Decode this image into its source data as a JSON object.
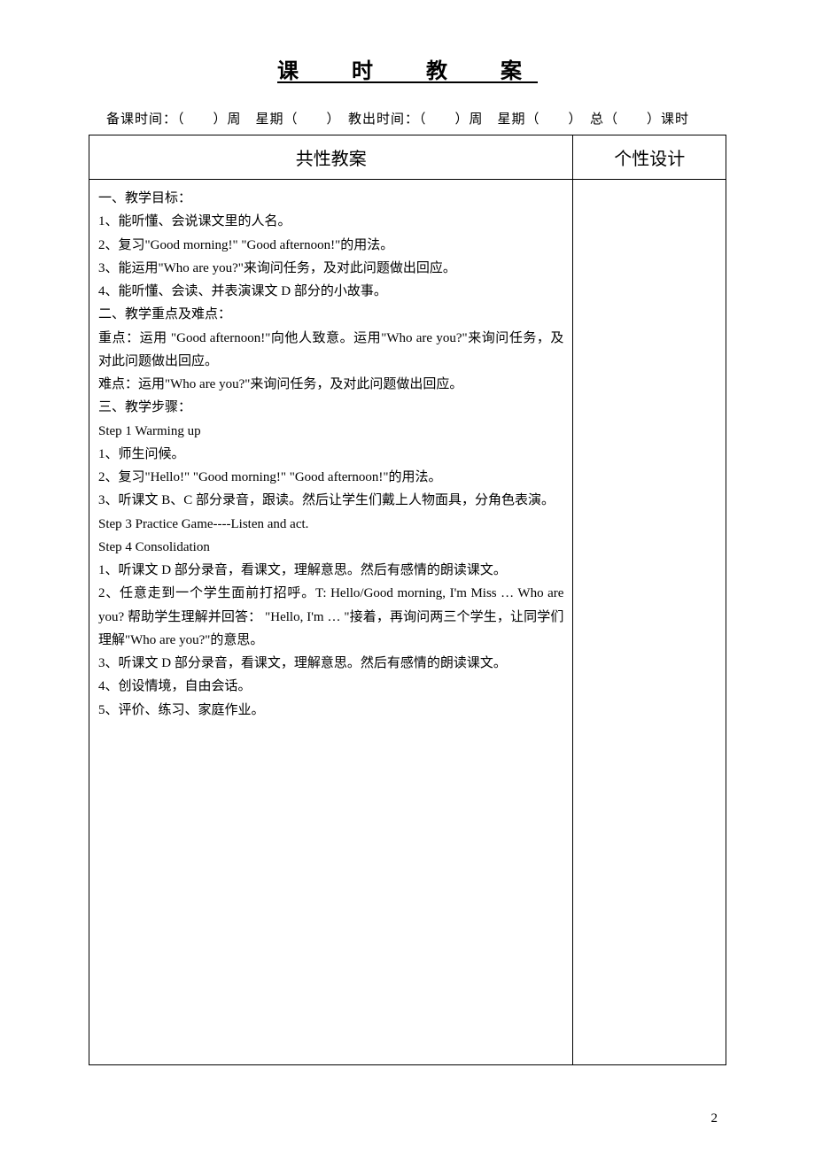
{
  "title": "课　时　教　案",
  "meta": "备课时间：（　　）周　星期（　　）　教出时间：（　　）周　星期（　　）　总（　　）课时",
  "headers": {
    "left": "共性教案",
    "right": "个性设计"
  },
  "content": {
    "lines": [
      "一、教学目标：",
      "1、能听懂、会说课文里的人名。",
      "2、复习\"Good morning!\" \"Good afternoon!\"的用法。",
      "3、能运用\"Who are you?\"来询问任务，及对此问题做出回应。",
      "4、能听懂、会读、并表演课文 D 部分的小故事。",
      "二、教学重点及难点：",
      "重点：运用 \"Good afternoon!\"向他人致意。运用\"Who are you?\"来询问任务，及对此问题做出回应。",
      "难点：运用\"Who are you?\"来询问任务，及对此问题做出回应。",
      "三、教学步骤：",
      "Step 1 Warming up",
      "1、师生问候。",
      "2、复习\"Hello!\" \"Good morning!\" \"Good afternoon!\"的用法。",
      "3、听课文 B、C 部分录音，跟读。然后让学生们戴上人物面具，分角色表演。",
      "Step 3 Practice Game----Listen and act.",
      "Step 4 Consolidation",
      "1、听课文 D 部分录音，看课文，理解意思。然后有感情的朗读课文。",
      "2、任意走到一个学生面前打招呼。T: Hello/Good morning, I'm Miss … Who are you? 帮助学生理解并回答： \"Hello, I'm … \"接着，再询问两三个学生，让同学们理解\"Who are you?\"的意思。",
      "3、听课文 D 部分录音，看课文，理解意思。然后有感情的朗读课文。",
      "4、创设情境，自由会话。",
      "5、评价、练习、家庭作业。"
    ]
  },
  "page_number": "2"
}
